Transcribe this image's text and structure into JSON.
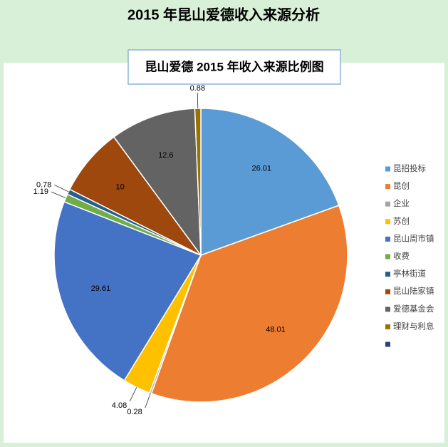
{
  "header": {
    "title": "2015 年昆山爱德收入来源分析"
  },
  "chart_data": {
    "type": "pie",
    "title": "昆山爱德 2015 年收入来源比例图",
    "categories": [
      "昆招投标",
      "昆创",
      "企业",
      "苏创",
      "昆山周市镇",
      "收费",
      "亭林街道",
      "昆山陆家镇",
      "爱德基金会",
      "理财与利息",
      null
    ],
    "values": [
      26.01,
      48.01,
      0.28,
      4.08,
      29.61,
      1.19,
      0.78,
      10,
      12.6,
      0.88,
      0
    ],
    "colors": [
      "#5b9bd5",
      "#ed7d31",
      "#a5a5a5",
      "#ffc000",
      "#4472c4",
      "#70ad47",
      "#255e91",
      "#9e480e",
      "#636363",
      "#997300",
      "#264478"
    ],
    "legend": "right"
  }
}
